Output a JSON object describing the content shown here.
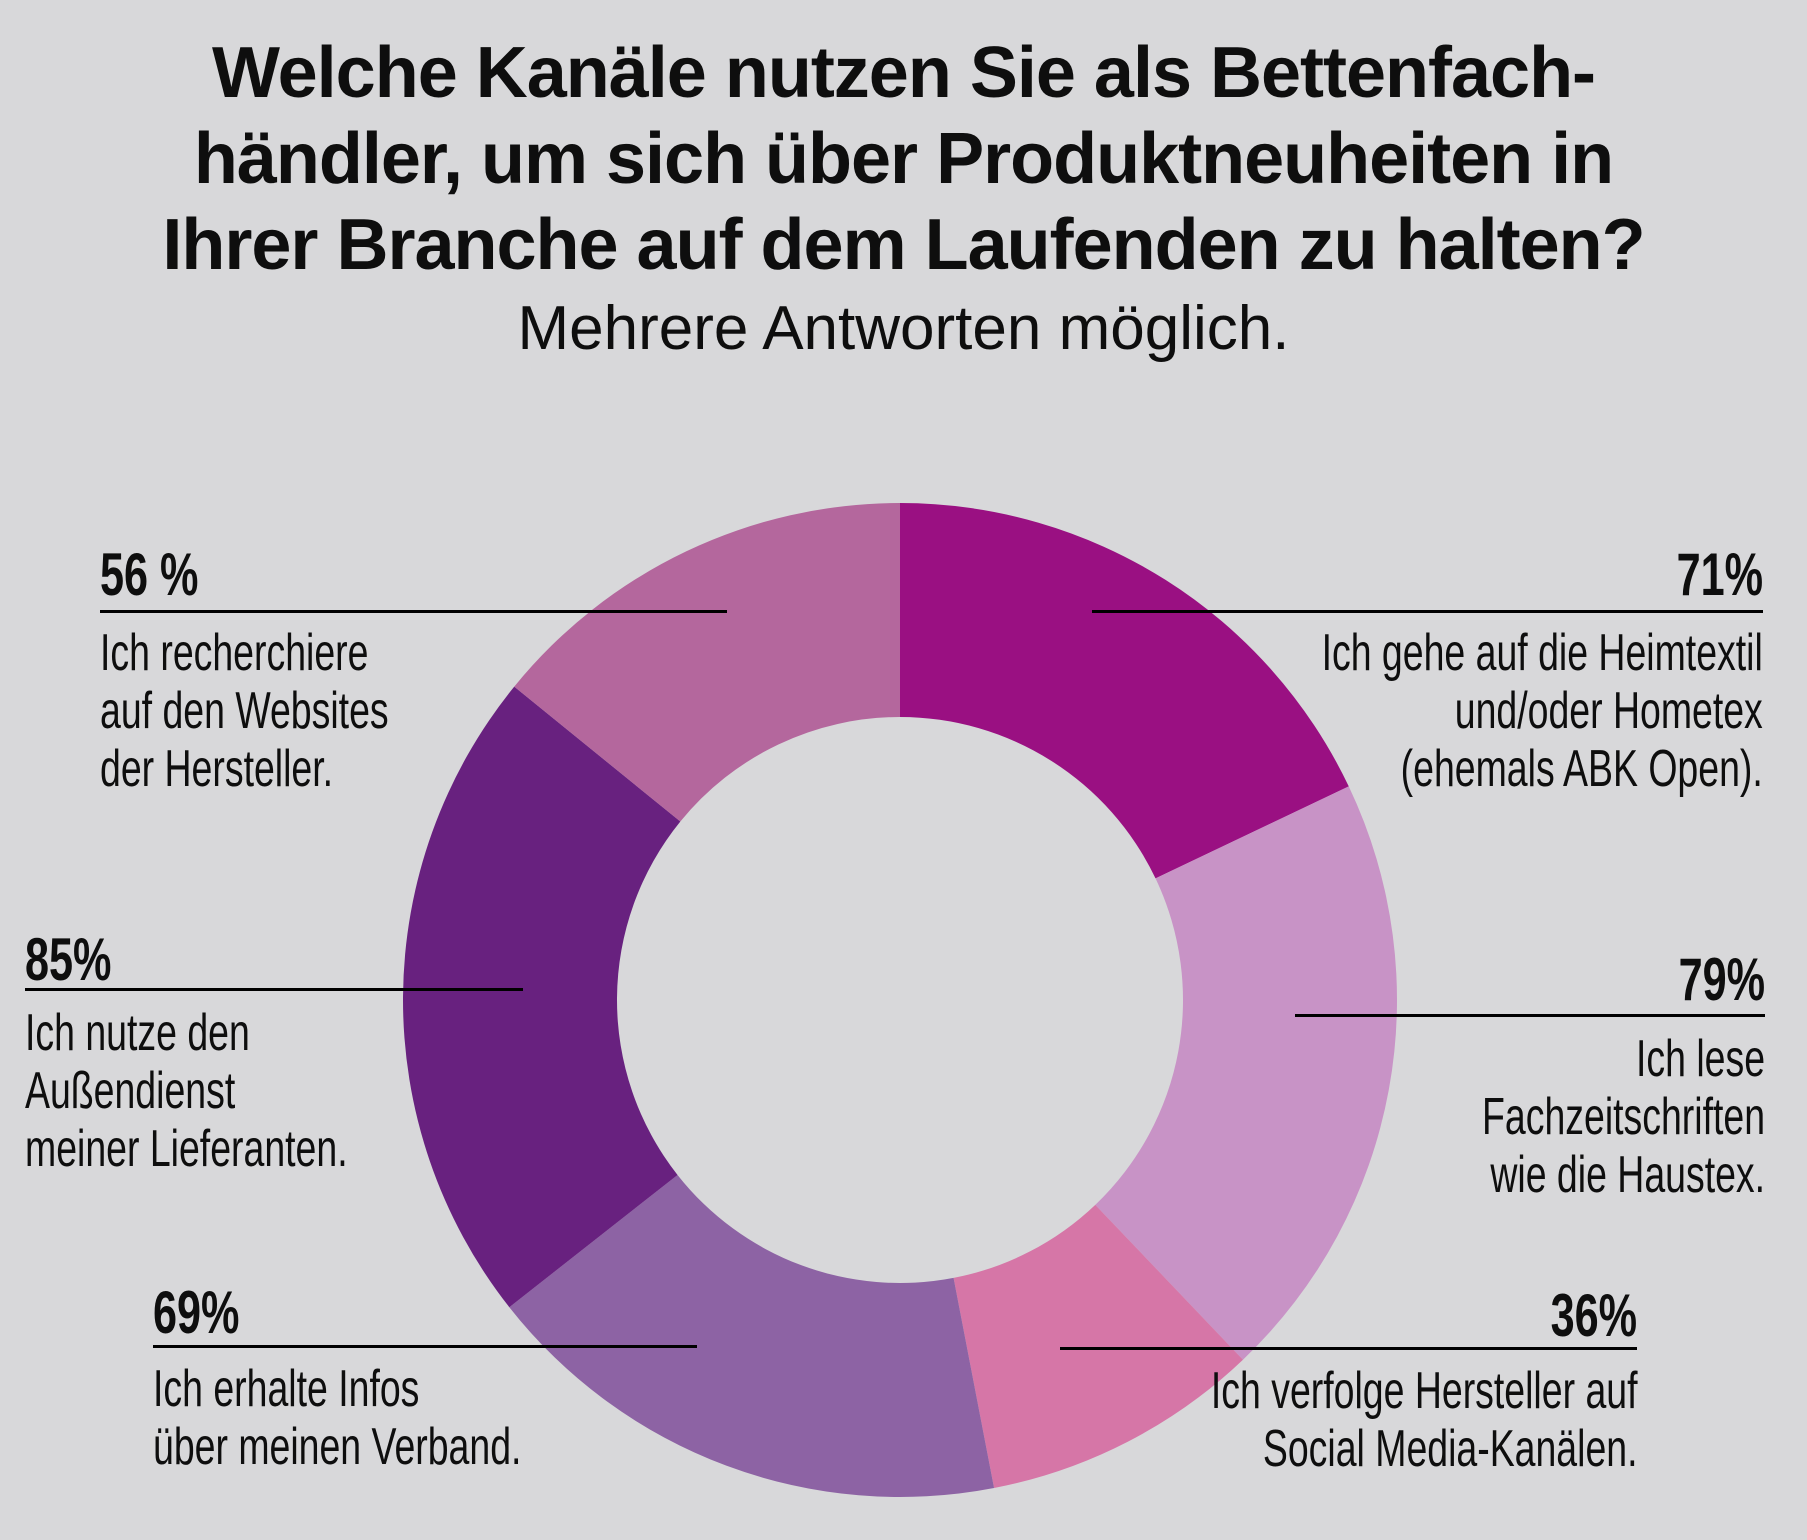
{
  "title": {
    "line1": "Welche Kanäle nutzen Sie als Bettenfach-",
    "line2": "händler, um sich über Produktneuheiten in",
    "line3": "Ihrer Branche auf dem Laufenden zu halten?",
    "subtitle": "Mehrere Antworten möglich."
  },
  "chart_data": {
    "type": "pie",
    "donut": true,
    "title": "Welche Kanäle nutzen Sie als Bettenfachhändler, um sich über Produktneuheiten in Ihrer Branche auf dem Laufenden zu halten?",
    "subtitle": "Mehrere Antworten möglich.",
    "start_angle_deg": 0,
    "direction": "clockwise",
    "inner_radius_ratio": 0.57,
    "legend_position": "callout-labels",
    "segments": [
      {
        "label": "Ich gehe auf die Heimtextil und/oder Hometex (ehemals ABK Open).",
        "value_pct": 71,
        "color": "#9A1082"
      },
      {
        "label": "Ich lese Fachzeitschriften wie die Haustex.",
        "value_pct": 79,
        "color": "#C893C6"
      },
      {
        "label": "Ich verfolge Hersteller auf Social Media-Kanälen.",
        "value_pct": 36,
        "color": "#D676A7"
      },
      {
        "label": "Ich erhalte Infos über meinen Verband.",
        "value_pct": 69,
        "color": "#8D63A4"
      },
      {
        "label": "Ich nutze den Außendienst meiner Lieferanten.",
        "value_pct": 85,
        "color": "#68217F"
      },
      {
        "label": "Ich recherchiere auf den Websites der Hersteller.",
        "value_pct": 56,
        "color": "#B4679D"
      }
    ]
  },
  "labels": {
    "l56": {
      "pct": "56 %",
      "lines": [
        "Ich recherchiere",
        "auf den Websites",
        "der Hersteller."
      ]
    },
    "l71": {
      "pct": "71%",
      "lines": [
        "Ich gehe auf die Heimtextil",
        "und/oder Hometex",
        "(ehemals ABK Open)."
      ]
    },
    "l85": {
      "pct": "85%",
      "lines": [
        "Ich nutze den",
        "Außendienst",
        "meiner Lieferanten."
      ]
    },
    "l79": {
      "pct": "79%",
      "lines": [
        "Ich lese",
        "Fachzeitschriften",
        "wie die Haustex."
      ]
    },
    "l69": {
      "pct": "69%",
      "lines": [
        "Ich erhalte Infos",
        "über meinen Verband."
      ]
    },
    "l36": {
      "pct": "36%",
      "lines": [
        "Ich verfolge Hersteller auf",
        "Social Media-Kanälen."
      ]
    }
  },
  "colors": {
    "background": "#D8D8DA",
    "text": "#0E0E0E",
    "leader_line": "#000000"
  }
}
